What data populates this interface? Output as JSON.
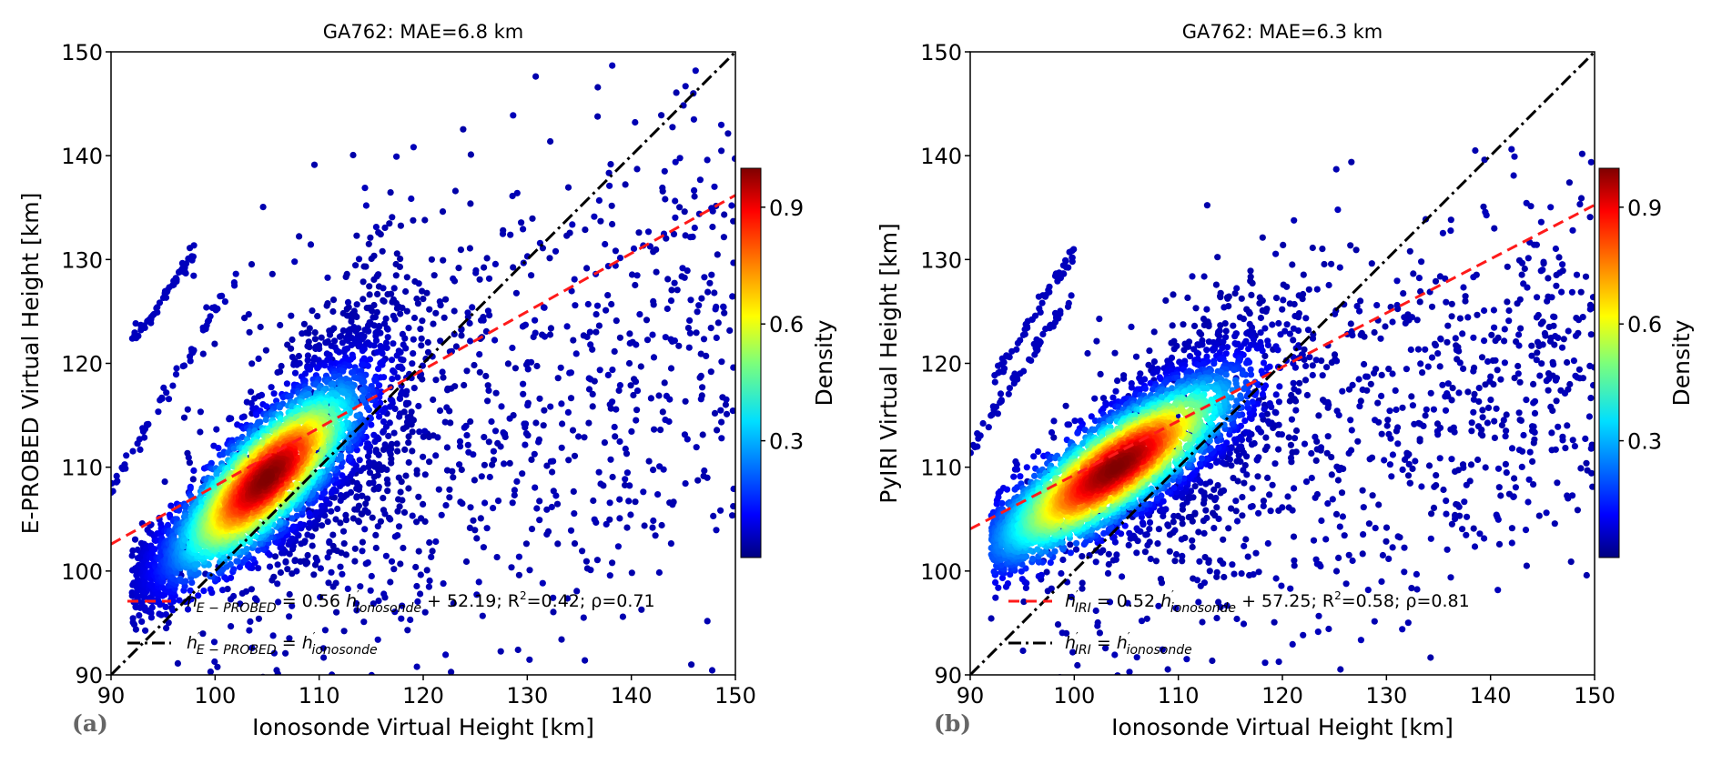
{
  "chart_data": [
    {
      "type": "scatter",
      "panel_label": "(a)",
      "title": "GA762: MAE=6.8 km",
      "xlabel": "Ionosonde Virtual Height [km]",
      "ylabel": "E-PROBED Virtual Height [km]",
      "xlim": [
        90,
        150
      ],
      "ylim": [
        90,
        150
      ],
      "xticks": [
        "90",
        "100",
        "110",
        "120",
        "130",
        "140",
        "150"
      ],
      "yticks": [
        "90",
        "100",
        "110",
        "120",
        "130",
        "140",
        "150"
      ],
      "fit": {
        "slope": 0.56,
        "intercept": 52.19,
        "r2": 0.42,
        "rho": 0.71,
        "color": "#ff1a1a"
      },
      "core": {
        "x": 105,
        "y": 109
      },
      "colorbar": {
        "label": "Density",
        "ticks": [
          "0.3",
          "0.6",
          "0.9"
        ],
        "range": [
          0,
          1
        ]
      },
      "legend": [
        {
          "parts": [
            "h",
            "′",
            "E − PROBED",
            " = 0.56 ",
            "h",
            "′",
            "ionosonde",
            " + 52.19; R",
            "2",
            "=0.42; ρ=0.71"
          ]
        },
        {
          "parts": [
            "h",
            "′",
            "E − PROBED",
            " = ",
            "h",
            "′",
            "ionosonde"
          ]
        }
      ]
    },
    {
      "type": "scatter",
      "panel_label": "(b)",
      "title": "GA762: MAE=6.3 km",
      "xlabel": "Ionosonde Virtual Height [km]",
      "ylabel": "PyIRI Virtual Height [km]",
      "xlim": [
        90,
        150
      ],
      "ylim": [
        90,
        150
      ],
      "xticks": [
        "90",
        "100",
        "110",
        "120",
        "130",
        "140",
        "150"
      ],
      "yticks": [
        "90",
        "100",
        "110",
        "120",
        "130",
        "140",
        "150"
      ],
      "fit": {
        "slope": 0.52,
        "intercept": 57.25,
        "r2": 0.58,
        "rho": 0.81,
        "color": "#ff1a1a"
      },
      "core": {
        "x": 104,
        "y": 110
      },
      "colorbar": {
        "label": "Density",
        "ticks": [
          "0.3",
          "0.6",
          "0.9"
        ],
        "range": [
          0,
          1
        ]
      },
      "legend": [
        {
          "parts": [
            "h",
            "′",
            "IRI",
            " = 0.52 ",
            "h",
            "′",
            "ionosonde",
            " + 57.25; R",
            "2",
            "=0.58; ρ=0.81"
          ]
        },
        {
          "parts": [
            "h",
            "′",
            "IRI",
            " = ",
            "h",
            "′",
            "ionosonde"
          ]
        }
      ]
    }
  ]
}
